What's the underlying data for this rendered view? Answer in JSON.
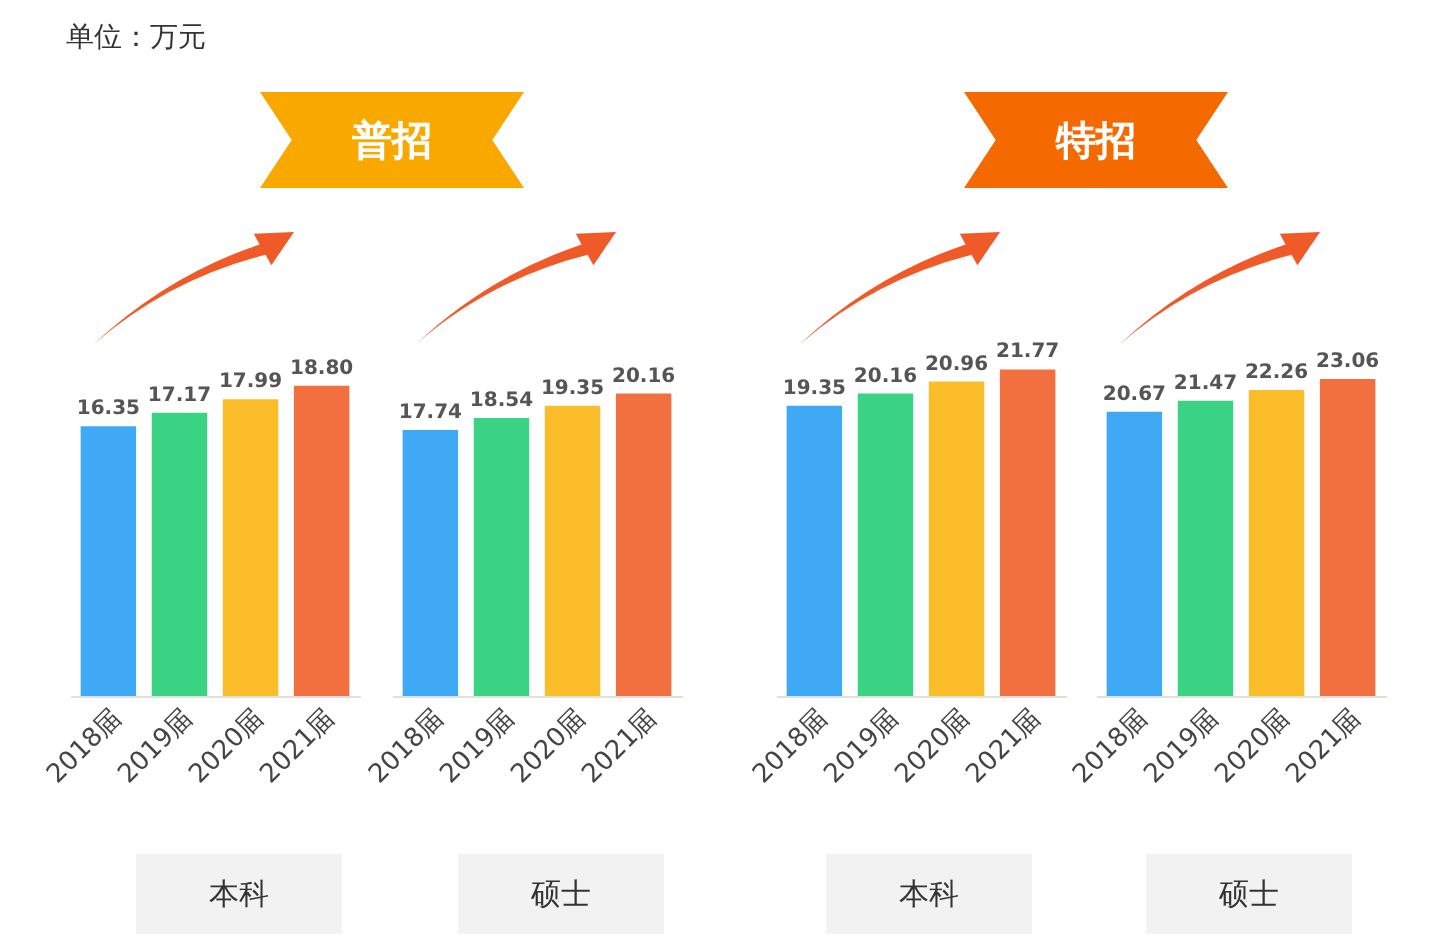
{
  "chart_data": [
    {
      "type": "bar",
      "title": "普招",
      "xlabel": "本科",
      "annotations": [
        "单位：万元"
      ],
      "categories": [
        "2018届",
        "2019届",
        "2020届",
        "2021届"
      ],
      "values": [
        16.35,
        17.17,
        17.99,
        18.8
      ],
      "value_labels": [
        "16.35",
        "17.17",
        "17.99",
        "18.80"
      ],
      "colors": [
        "#3fa9f5",
        "#3ad384",
        "#fbbd2a",
        "#f26f3f"
      ],
      "tick_labels": "x"
    },
    {
      "type": "bar",
      "xlabel": "硕士",
      "categories": [
        "2018届",
        "2019届",
        "2020届",
        "2021届"
      ],
      "values": [
        17.74,
        18.54,
        19.35,
        20.16
      ],
      "value_labels": [
        "17.74",
        "18.54",
        "19.35",
        "20.16"
      ],
      "colors": [
        "#3fa9f5",
        "#3ad384",
        "#fbbd2a",
        "#f26f3f"
      ],
      "tick_labels": "x"
    },
    {
      "type": "bar",
      "title": "特招",
      "xlabel": "本科",
      "categories": [
        "2018届",
        "2019届",
        "2020届",
        "2021届"
      ],
      "values": [
        19.35,
        20.16,
        20.96,
        21.77
      ],
      "value_labels": [
        "19.35",
        "20.16",
        "20.96",
        "21.77"
      ],
      "colors": [
        "#3fa9f5",
        "#3ad384",
        "#fbbd2a",
        "#f26f3f"
      ],
      "tick_labels": "x"
    },
    {
      "type": "bar",
      "xlabel": "硕士",
      "categories": [
        "2018届",
        "2019届",
        "2020届",
        "2021届"
      ],
      "values": [
        20.67,
        21.47,
        22.26,
        23.06
      ],
      "value_labels": [
        "20.67",
        "21.47",
        "22.26",
        "23.06"
      ],
      "colors": [
        "#3fa9f5",
        "#3ad384",
        "#fbbd2a",
        "#f26f3f"
      ],
      "tick_labels": "x"
    }
  ]
}
